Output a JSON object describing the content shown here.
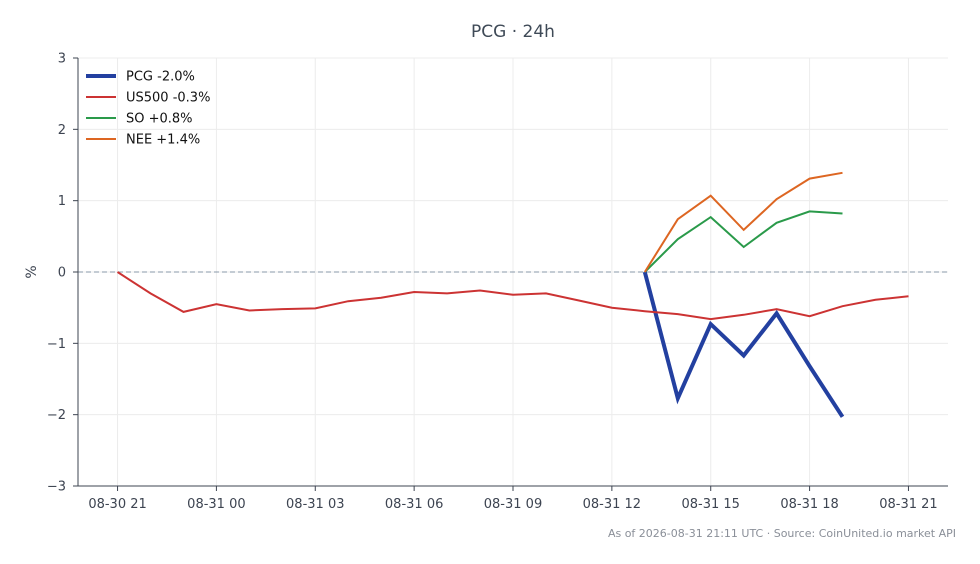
{
  "chart_data": {
    "type": "line",
    "title": "PCG · 24h",
    "xlabel": "",
    "ylabel": "%",
    "ylim": [
      -3,
      3
    ],
    "y_ticks": [
      3,
      2,
      1,
      0,
      -1,
      -2,
      -3
    ],
    "y_tick_labels": [
      "3",
      "2",
      "1",
      "0",
      "−1",
      "−2",
      "−3"
    ],
    "x_tick_labels": [
      "08-30 21",
      "08-31 00",
      "08-31 03",
      "08-31 06",
      "08-31 09",
      "08-31 12",
      "08-31 15",
      "08-31 18",
      "08-31 21"
    ],
    "x_tick_hours": [
      0,
      3,
      6,
      9,
      12,
      15,
      18,
      21,
      24
    ],
    "x_range_hours": [
      -1.2,
      25.2
    ],
    "x_origin": "08-30 21:00 UTC",
    "reference_line": {
      "y": 0,
      "style": "dashed"
    },
    "grid": true,
    "legend_position": "top-left",
    "series": [
      {
        "name": "PCG -2.0%",
        "color": "#2340a0",
        "width": 4,
        "x_hours": [
          16,
          17,
          18,
          19,
          20,
          21,
          22
        ],
        "values": [
          0,
          -1.77,
          -0.73,
          -1.17,
          -0.58,
          -1.32,
          -2.03
        ]
      },
      {
        "name": "US500 -0.3%",
        "color": "#cc3333",
        "width": 2,
        "x_hours": [
          0,
          1,
          2,
          3,
          4,
          5,
          6,
          7,
          8,
          9,
          10,
          11,
          12,
          13,
          14,
          15,
          16,
          17,
          18,
          19,
          20,
          21,
          22,
          23,
          24
        ],
        "values": [
          0,
          -0.3,
          -0.56,
          -0.45,
          -0.54,
          -0.52,
          -0.51,
          -0.41,
          -0.36,
          -0.28,
          -0.3,
          -0.26,
          -0.32,
          -0.3,
          -0.4,
          -0.5,
          -0.55,
          -0.59,
          -0.66,
          -0.6,
          -0.52,
          -0.62,
          -0.48,
          -0.39,
          -0.34
        ]
      },
      {
        "name": "SO +0.8%",
        "color": "#2a9a4a",
        "width": 2,
        "x_hours": [
          16,
          17,
          18,
          19,
          20,
          21,
          22
        ],
        "values": [
          0,
          0.46,
          0.77,
          0.35,
          0.69,
          0.85,
          0.82
        ]
      },
      {
        "name": "NEE +1.4%",
        "color": "#dd6622",
        "width": 2,
        "x_hours": [
          16,
          17,
          18,
          19,
          20,
          21,
          22
        ],
        "values": [
          0,
          0.74,
          1.07,
          0.59,
          1.02,
          1.31,
          1.39
        ]
      }
    ],
    "footer": "As of 2026-08-31 21:11 UTC · Source: CoinUnited.io market API"
  }
}
